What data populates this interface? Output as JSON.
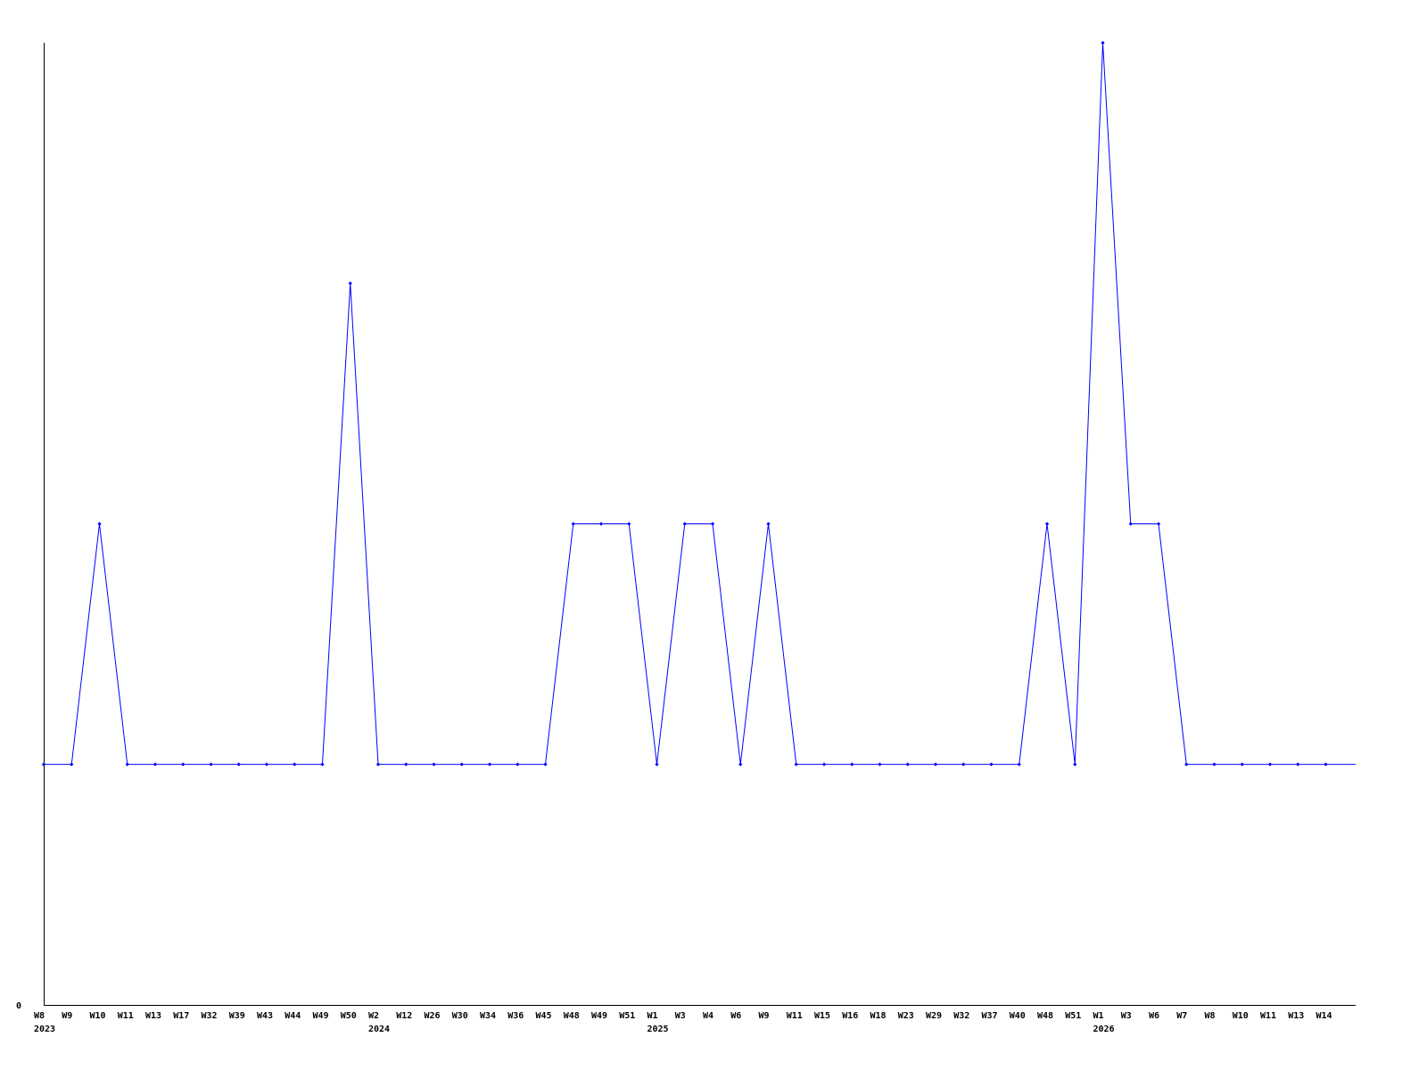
{
  "chart_data": {
    "type": "line",
    "title": "",
    "xlabel": "",
    "ylabel": "",
    "ylim": [
      0,
      4
    ],
    "y_tick_labels": [
      "0"
    ],
    "grid": false,
    "line_color": "#0000ff",
    "categories": [
      "W8",
      "W9",
      "W10",
      "W11",
      "W13",
      "W17",
      "W32",
      "W39",
      "W43",
      "W44",
      "W49",
      "W50",
      "W2",
      "W12",
      "W26",
      "W30",
      "W34",
      "W36",
      "W45",
      "W48",
      "W49",
      "W51",
      "W1",
      "W3",
      "W4",
      "W6",
      "W9",
      "W11",
      "W15",
      "W16",
      "W18",
      "W23",
      "W29",
      "W32",
      "W37",
      "W40",
      "W48",
      "W51",
      "W1",
      "W3",
      "W6",
      "W7",
      "W8",
      "W10",
      "W11",
      "W13",
      "W14"
    ],
    "year_labels": [
      {
        "index": 0,
        "label": "2023"
      },
      {
        "index": 12,
        "label": "2024"
      },
      {
        "index": 22,
        "label": "2025"
      },
      {
        "index": 38,
        "label": "2026"
      }
    ],
    "series": [
      {
        "values": [
          1,
          1,
          2,
          1,
          1,
          1,
          1,
          1,
          1,
          1,
          1,
          3,
          1,
          1,
          1,
          1,
          1,
          1,
          1,
          2,
          2,
          2,
          1,
          2,
          2,
          1,
          2,
          1,
          1,
          1,
          1,
          1,
          1,
          1,
          1,
          1,
          2,
          1,
          4,
          2,
          2,
          1,
          1,
          1,
          1,
          1,
          1
        ]
      }
    ]
  }
}
